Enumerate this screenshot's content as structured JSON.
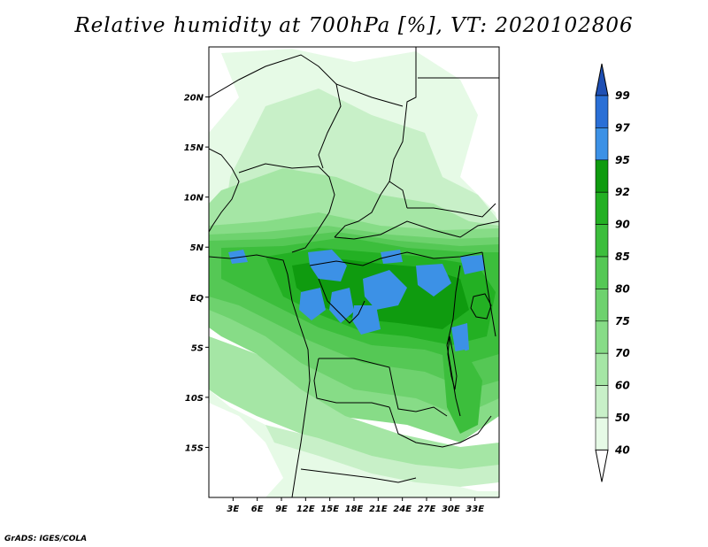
{
  "title": "Relative humidity at 700hPa [%], VT: 2020102806",
  "credit": "GrADS: IGES/COLA",
  "map": {
    "lon_range": [
      0,
      36
    ],
    "lat_range": [
      -20,
      25
    ],
    "x_ticks": [
      "3E",
      "6E",
      "9E",
      "12E",
      "15E",
      "18E",
      "21E",
      "24E",
      "27E",
      "30E",
      "33E"
    ],
    "y_ticks": [
      "20N",
      "15N",
      "10N",
      "5N",
      "EQ",
      "5S",
      "10S",
      "15S"
    ]
  },
  "colorbar": {
    "levels": [
      "99",
      "97",
      "95",
      "92",
      "90",
      "85",
      "80",
      "75",
      "70",
      "60",
      "50",
      "40"
    ],
    "colors": {
      "lt40": "#ffffff",
      "c40_50": "#e6fae6",
      "c50_60": "#c8f0c8",
      "c60_70": "#a5e6a5",
      "c70_75": "#87dc87",
      "c75_80": "#6ed26e",
      "c80_85": "#55c855",
      "c85_90": "#3cbe3c",
      "c90_92": "#23b023",
      "c92_95": "#0f9b0f",
      "c95_97": "#3c91e6",
      "c97_99": "#2a6fd6",
      "gt99": "#1e4fb4"
    }
  }
}
